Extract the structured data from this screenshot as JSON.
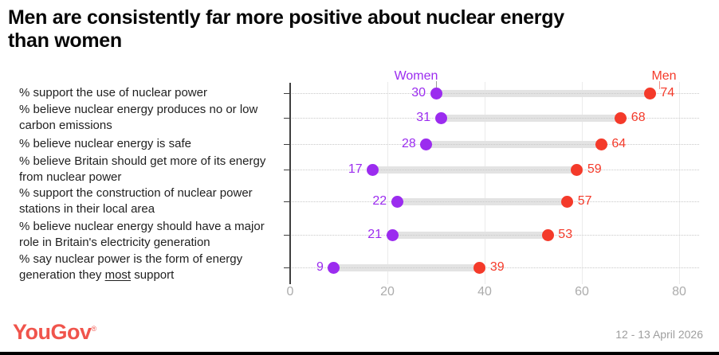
{
  "title": "Men are consistently far more positive about nuclear energy than women",
  "title_lines": [
    "Men are consistently far more positive about nuclear energy",
    "than women"
  ],
  "legend": {
    "women": "Women",
    "men": "Men"
  },
  "footer": {
    "logo": "YouGov",
    "trademark": "®",
    "date": "12 - 13 April 2026"
  },
  "colors": {
    "women": "#9b2cef",
    "men": "#f43a2a",
    "connector_bar": "#e3e3e3",
    "vertical_grid": "#ebebeb",
    "dotted_grid": "#c9c9c9",
    "axis": "#3f3f3f",
    "tick_label": "#acacac",
    "category_text": "#1f1f1f",
    "brand": "#f0544c",
    "date_text": "#9e9e9e",
    "women_callout_tick": "#999999",
    "men_callout_tick": "#f08f86"
  },
  "chart_data": {
    "type": "scatter",
    "variant": "dumbbell",
    "orientation": "horizontal",
    "title": "Men are consistently far more positive about nuclear energy than women",
    "categories": [
      {
        "text": "% support the use of nuclear power",
        "lines": [
          "% support the use of nuclear power"
        ]
      },
      {
        "text": "% believe nuclear energy produces no or low carbon emissions",
        "lines": [
          "% believe nuclear energy produces no or low",
          "carbon emissions"
        ]
      },
      {
        "text": "% believe nuclear energy is safe",
        "lines": [
          "% believe nuclear energy is safe"
        ]
      },
      {
        "text": "% believe Britain should get more of its energy from nuclear power",
        "lines": [
          "% believe Britain should get more of its energy",
          "from nuclear power"
        ]
      },
      {
        "text": "% support the construction of nuclear power stations in their local area",
        "lines": [
          "% support the construction of nuclear power",
          "stations in their local area"
        ]
      },
      {
        "text": "% believe nuclear energy should have a major role in Britain's electricity generation",
        "lines": [
          "% believe nuclear energy should have a major",
          "role in Britain's electricity generation"
        ]
      },
      {
        "text": "% say nuclear power is the form of energy generation they most support",
        "lines": [
          "% say nuclear power is the form of energy",
          "generation they most support"
        ],
        "underline": "most"
      }
    ],
    "series": [
      {
        "name": "Women",
        "color": "#9b2cef",
        "values": [
          30,
          31,
          28,
          17,
          22,
          21,
          9
        ]
      },
      {
        "name": "Men",
        "color": "#f43a2a",
        "values": [
          74,
          68,
          64,
          59,
          57,
          53,
          39
        ]
      }
    ],
    "xlim": [
      0,
      84
    ],
    "xticks": [
      0,
      20,
      40,
      60,
      80
    ],
    "grid": "vertical solid gridlines at each xtick; dotted horizontal guide per category",
    "legend_position": "top, above first pair of dots"
  }
}
